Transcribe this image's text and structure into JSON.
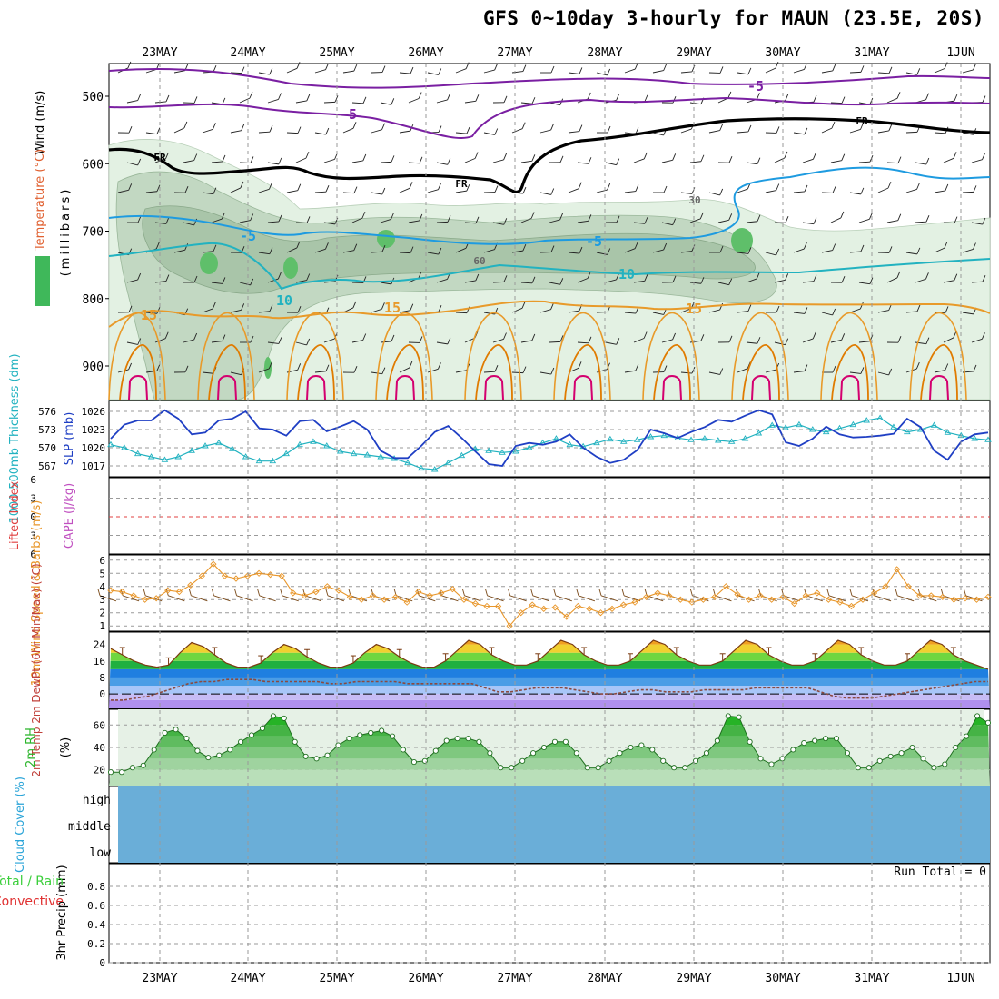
{
  "title": "GFS 0~10day 3-hourly for MAUN (23.5E, 20S)",
  "dates": [
    "23MAY",
    "24MAY",
    "25MAY",
    "26MAY",
    "27MAY",
    "28MAY",
    "29MAY",
    "30MAY",
    "31MAY",
    "1JUN"
  ],
  "colors": {
    "purple": "#7a1fa2",
    "black": "#000000",
    "blue": "#1e9be0",
    "cyan": "#19b5c8",
    "orange": "#e89a2a",
    "darkorange": "#e07b00",
    "magenta": "#d4006f",
    "slp": "#1f3fc4",
    "thick": "#22b2c0",
    "wind10": "#e8962a",
    "barb": "#7a4a1a",
    "rh": "#3fb85a",
    "cloud": "#6aaed8",
    "precip_total": "#3ccf3c",
    "precip_conv": "#e03030"
  },
  "chart_data": [
    {
      "panel": "upper-air",
      "type": "contour",
      "ylabel_parts": [
        "Wind (m/s)",
        "Temperature (°C)",
        "RH (%)",
        "(millibars)"
      ],
      "yticks": [
        500,
        600,
        700,
        800,
        900
      ],
      "contour_labels": [
        {
          "text": "-5",
          "series": "temp_-5_upper"
        },
        {
          "text": "-5",
          "series": "temp_-5_upper"
        },
        {
          "text": "FR",
          "series": "freezing"
        },
        {
          "text": "FR",
          "series": "freezing"
        },
        {
          "text": "FR",
          "series": "freezing"
        },
        {
          "text": "-5",
          "series": "temp_-5_mid"
        },
        {
          "text": "-5",
          "series": "temp_-5_mid"
        },
        {
          "text": "10",
          "series": "temp_10"
        },
        {
          "text": "10",
          "series": "temp_10"
        },
        {
          "text": "15",
          "series": "temp_15"
        },
        {
          "text": "15",
          "series": "temp_15"
        },
        {
          "text": "15",
          "series": "temp_15"
        },
        {
          "text": "30",
          "series": "rh"
        },
        {
          "text": "60",
          "series": "rh"
        }
      ]
    },
    {
      "panel": "slp-thickness",
      "type": "line",
      "ylabel_left": "1000-500mb Thickness (dm)",
      "ylabel_right": "SLP (mb)",
      "yticks_left": [
        567,
        570,
        573,
        576
      ],
      "yticks_right": [
        1017,
        1020,
        1023,
        1026
      ],
      "series": [
        {
          "name": "SLP",
          "values": [
            1021.5,
            1023.8,
            1024.5,
            1024.5,
            1026.2,
            1024.8,
            1022.2,
            1022.5,
            1024.5,
            1024.8,
            1026.0,
            1023.2,
            1023.0,
            1022.0,
            1024.4,
            1024.6,
            1022.7,
            1023.5,
            1024.4,
            1023.0,
            1019.5,
            1018.3,
            1018.3,
            1020.3,
            1022.6,
            1023.6,
            1021.6,
            1019.4,
            1017.3,
            1017.0,
            1020.3,
            1020.8,
            1020.5,
            1021.0,
            1022.2,
            1020.0,
            1018.5,
            1017.5,
            1018.0,
            1019.6,
            1023.0,
            1022.4,
            1021.6,
            1022.6,
            1023.4,
            1024.6,
            1024.3,
            1025.3,
            1026.2,
            1025.5,
            1020.9,
            1020.3,
            1021.5,
            1023.5,
            1022.2,
            1021.7,
            1021.8,
            1022.0,
            1022.3,
            1024.8,
            1023.4,
            1019.5,
            1018.0,
            1021.0,
            1022.2,
            1022.5
          ]
        },
        {
          "name": "Thickness",
          "values": [
            570.5,
            570.0,
            569.0,
            568.5,
            568.0,
            568.5,
            569.5,
            570.3,
            570.8,
            569.8,
            568.5,
            567.8,
            567.8,
            569.0,
            570.5,
            571.0,
            570.3,
            569.4,
            569.0,
            568.8,
            568.5,
            568.2,
            567.5,
            566.6,
            566.4,
            567.5,
            568.7,
            569.8,
            569.5,
            569.2,
            569.4,
            570.0,
            570.8,
            571.5,
            570.5,
            570.2,
            570.8,
            571.4,
            571.0,
            571.3,
            571.8,
            572.0,
            571.6,
            571.3,
            571.5,
            571.2,
            571.0,
            571.5,
            572.4,
            573.7,
            573.3,
            573.8,
            573.0,
            572.6,
            573.2,
            573.8,
            574.5,
            574.9,
            573.4,
            572.6,
            573.0,
            573.7,
            572.5,
            572.0,
            571.5,
            571.3
          ]
        }
      ]
    },
    {
      "panel": "stability",
      "type": "line",
      "ylabel_left": "Lifted Index",
      "ylabel_right": "CAPE (J/kg)",
      "yticks": [
        6,
        3,
        0,
        -3,
        -6
      ],
      "series": [
        {
          "name": "Lifted Index",
          "values": []
        },
        {
          "name": "CAPE",
          "values": []
        }
      ]
    },
    {
      "panel": "wind10m",
      "type": "line",
      "ylabel": "10m Wind Speed & Barbs (m/s)",
      "yticks": [
        1,
        2,
        3,
        4,
        5,
        6
      ],
      "series": [
        {
          "name": "Speed",
          "values": [
            3.7,
            3.6,
            3.3,
            3.0,
            3.1,
            3.7,
            3.6,
            4.1,
            4.8,
            5.7,
            4.8,
            4.6,
            4.8,
            5.0,
            4.9,
            4.8,
            3.5,
            3.3,
            3.6,
            4.0,
            3.7,
            3.2,
            3.0,
            3.3,
            3.0,
            3.2,
            2.8,
            3.6,
            3.3,
            3.5,
            3.8,
            3.0,
            2.7,
            2.5,
            2.5,
            1.0,
            2.0,
            2.6,
            2.3,
            2.4,
            1.7,
            2.5,
            2.3,
            2.0,
            2.3,
            2.6,
            2.8,
            3.2,
            3.5,
            3.3,
            3.0,
            2.8,
            3.0,
            3.2,
            4.0,
            3.4,
            3.0,
            3.3,
            3.0,
            3.2,
            2.7,
            3.3,
            3.5,
            3.0,
            2.8,
            2.5,
            3.0,
            3.5,
            4.0,
            5.3,
            4.0,
            3.3,
            3.3,
            3.2,
            3.0,
            3.1,
            3.0,
            3.2
          ]
        }
      ]
    },
    {
      "panel": "temperature",
      "type": "area",
      "ylabel": "2m Temp 2m DewPt (6hr Min/Max) (°C)",
      "yticks": [
        0,
        8,
        16,
        24
      ],
      "series": [
        {
          "name": "2m Temp",
          "values": [
            22,
            19,
            16,
            14,
            13,
            14,
            20,
            25,
            23,
            19,
            15,
            13,
            13,
            15,
            20,
            24,
            22,
            18,
            15,
            13,
            13,
            15,
            20,
            24,
            22,
            18,
            15,
            13,
            13,
            16,
            21,
            26,
            24,
            19,
            16,
            14,
            14,
            16,
            21,
            26,
            24,
            19,
            16,
            14,
            14,
            16,
            21,
            26,
            24,
            19,
            16,
            14,
            14,
            16,
            21,
            26,
            24,
            19,
            16,
            14,
            14,
            16,
            21,
            26,
            24,
            19,
            16,
            14,
            14,
            16,
            21,
            26,
            24,
            19,
            16,
            14,
            12
          ]
        },
        {
          "name": "2m DewPt",
          "values": [
            -3,
            -3,
            -2,
            -1,
            1,
            3,
            5,
            6,
            6,
            7,
            7,
            7,
            6,
            6,
            6,
            6,
            6,
            5,
            5,
            6,
            6,
            6,
            6,
            5,
            5,
            5,
            5,
            5,
            5,
            3,
            1,
            1,
            2,
            3,
            3,
            3,
            2,
            1,
            0,
            0,
            1,
            2,
            2,
            1,
            1,
            1,
            2,
            2,
            2,
            2,
            3,
            3,
            3,
            3,
            3,
            1,
            -1,
            -2,
            -2,
            -2,
            -1,
            0,
            1,
            2,
            3,
            4,
            5,
            6,
            6
          ]
        }
      ]
    },
    {
      "panel": "rh2m",
      "type": "area",
      "ylabel": "2m RH (%)",
      "yticks": [
        20,
        40,
        60
      ],
      "series": [
        {
          "name": "2m RH",
          "values": [
            18,
            18,
            22,
            24,
            38,
            53,
            56,
            48,
            37,
            31,
            33,
            38,
            45,
            51,
            57,
            68,
            66,
            45,
            32,
            30,
            33,
            42,
            48,
            51,
            53,
            55,
            50,
            38,
            27,
            28,
            37,
            46,
            48,
            48,
            45,
            35,
            22,
            22,
            28,
            35,
            40,
            45,
            45,
            35,
            22,
            22,
            28,
            35,
            40,
            42,
            38,
            28,
            22,
            22,
            28,
            35,
            46,
            68,
            67,
            45,
            30,
            25,
            30,
            38,
            44,
            46,
            48,
            48,
            35,
            22,
            22,
            28,
            32,
            35,
            40,
            30,
            22,
            25,
            40,
            50,
            68,
            62
          ]
        }
      ]
    },
    {
      "panel": "cloud",
      "type": "heatmap",
      "ylabel": "Cloud Cover (%)",
      "layers": [
        "high",
        "middle",
        "low"
      ],
      "values": [
        0,
        0,
        0
      ]
    },
    {
      "panel": "precip",
      "type": "bar",
      "ylabel_left": [
        "Total / Rain",
        "Convective"
      ],
      "ylabel": "3hr Precip (mm)",
      "yticks": [
        0,
        0.2,
        0.4,
        0.6,
        0.8
      ],
      "run_total_label": "Run Total =",
      "run_total": "0",
      "values": []
    }
  ]
}
